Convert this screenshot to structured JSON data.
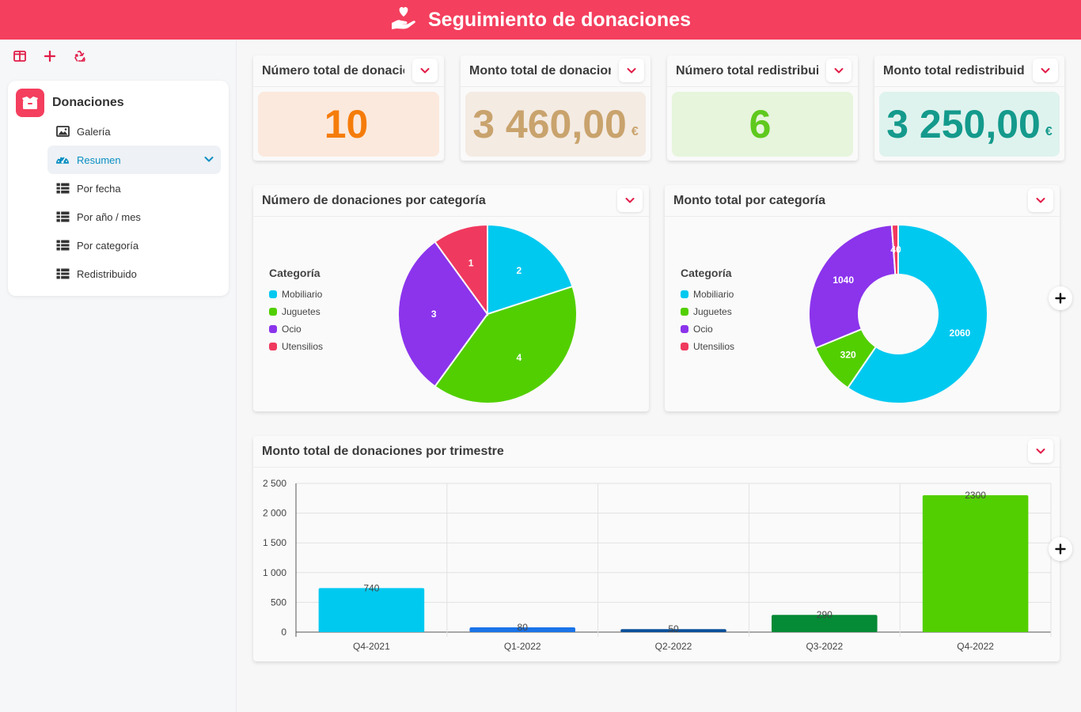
{
  "header": {
    "title": "Seguimiento de donaciones",
    "icon": "hand-heart-icon"
  },
  "sidebar": {
    "tools": [
      {
        "icon": "layout-columns-icon"
      },
      {
        "icon": "plus-icon"
      },
      {
        "icon": "recycle-icon"
      }
    ],
    "section": {
      "title": "Donaciones",
      "icon": "box-icon"
    },
    "items": [
      {
        "label": "Galería",
        "icon": "image-icon"
      },
      {
        "label": "Resumen",
        "icon": "gauge-icon",
        "active": true
      },
      {
        "label": "Por fecha",
        "icon": "table-icon"
      },
      {
        "label": "Por año / mes",
        "icon": "table-icon"
      },
      {
        "label": "Por categoría",
        "icon": "table-icon"
      },
      {
        "label": "Redistribuido",
        "icon": "table-icon"
      }
    ]
  },
  "metrics": [
    {
      "title": "Número total de donaciones",
      "value": "10",
      "unit": "",
      "bg": "#fbe9dd",
      "color": "#f57c0b"
    },
    {
      "title": "Monto total de donaciones",
      "value": "3 460,00",
      "unit": "€",
      "bg": "#f4ebe3",
      "color": "#c9a36d"
    },
    {
      "title": "Número total redistribuido",
      "value": "6",
      "unit": "",
      "bg": "#e6f5dc",
      "color": "#5fc91e"
    },
    {
      "title": "Monto total redistribuido",
      "value": "3 250,00",
      "unit": "€",
      "bg": "#dff3ee",
      "color": "#149a8c"
    }
  ],
  "colors": {
    "accent": "#f43f5e",
    "mobiliario": "#00c9f0",
    "juguetes": "#52cf00",
    "ocio": "#8b34ec",
    "utensilios": "#f0395e"
  },
  "pie_card": {
    "title": "Número de donaciones por categoría",
    "legend_title": "Categoría"
  },
  "donut_card": {
    "title": "Monto total por categoría",
    "legend_title": "Categoría"
  },
  "bar_card": {
    "title": "Monto total de donaciones por trimestre"
  },
  "chart_data": [
    {
      "type": "pie",
      "categories": [
        "Mobiliario",
        "Juguetes",
        "Ocio",
        "Utensilios"
      ],
      "values": [
        2,
        4,
        3,
        1
      ],
      "colors": [
        "#00c9f0",
        "#52cf00",
        "#8b34ec",
        "#f0395e"
      ],
      "legend_title": "Categoría",
      "legend": "left"
    },
    {
      "type": "pie",
      "donut": true,
      "categories": [
        "Mobiliario",
        "Juguetes",
        "Ocio",
        "Utensilios"
      ],
      "values": [
        2060,
        320,
        1040,
        40
      ],
      "colors": [
        "#00c9f0",
        "#52cf00",
        "#8b34ec",
        "#f0395e"
      ],
      "legend_title": "Categoría",
      "legend": "left"
    },
    {
      "type": "bar",
      "categories": [
        "Q4-2021",
        "Q1-2022",
        "Q2-2022",
        "Q3-2022",
        "Q4-2022"
      ],
      "values": [
        740,
        80,
        50,
        290,
        2300
      ],
      "colors": [
        "#00c9f0",
        "#1a73e8",
        "#0b4f9a",
        "#058a35",
        "#52cf00"
      ],
      "ylim": [
        0,
        2500
      ],
      "yticks": [
        0,
        500,
        1000,
        1500,
        2000,
        2500
      ],
      "ytick_labels": [
        "0",
        "500",
        "1 000",
        "1 500",
        "2 000",
        "2 500"
      ],
      "grid": true
    }
  ]
}
